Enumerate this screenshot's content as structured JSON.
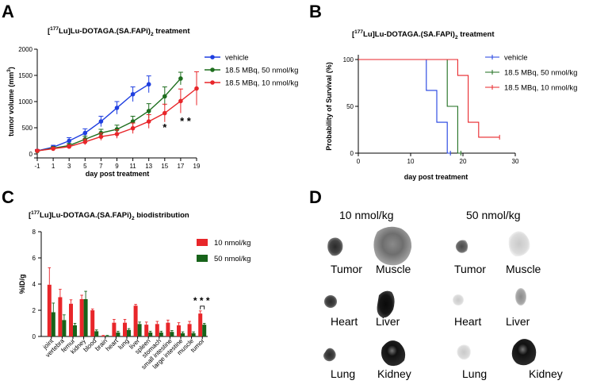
{
  "panels": {
    "A": {
      "letter": "A",
      "title_pre": "[",
      "title_sup": "177",
      "title_main": "Lu]Lu-DOTAGA.(SA.FAPi)",
      "title_sub": "2",
      "title_post": " treatment"
    },
    "B": {
      "letter": "B",
      "title_pre": "[",
      "title_sup": "177",
      "title_main": "Lu]Lu-DOTAGA.(SA.FAPi)",
      "title_sub": "2",
      "title_post": " treatment"
    },
    "C": {
      "letter": "C",
      "title_pre": "[",
      "title_sup": "177",
      "title_main": "Lu]Lu-DOTAGA.(SA.FAPi)",
      "title_sub": "2",
      "title_post": " biodistribution"
    },
    "D": {
      "letter": "D"
    }
  },
  "colors": {
    "blue": "#1f3fe0",
    "green": "#1e6e1e",
    "red": "#e8262a",
    "dark_green": "#17631a"
  },
  "chart_data": [
    {
      "id": "A",
      "type": "line",
      "xlabel": "day post treatment",
      "ylabel_main": "tumor volume (mm",
      "ylabel_sup": "3",
      "ylabel_end": ")",
      "xlim": [
        -1,
        19
      ],
      "ylim": [
        0,
        2000
      ],
      "xticks": [
        -1,
        1,
        3,
        5,
        7,
        9,
        11,
        13,
        15,
        17,
        19
      ],
      "yticks": [
        0,
        500,
        1000,
        1500,
        2000
      ],
      "series": [
        {
          "name": "vehicle",
          "color": "#1f3fe0",
          "x": [
            -1,
            1,
            3,
            5,
            7,
            9,
            11,
            13
          ],
          "y": [
            60,
            130,
            250,
            400,
            620,
            880,
            1140,
            1330
          ],
          "err": [
            25,
            35,
            60,
            80,
            100,
            120,
            140,
            160
          ]
        },
        {
          "name": "18.5 MBq, 50 nmol/kg",
          "color": "#1e6e1e",
          "x": [
            -1,
            1,
            3,
            5,
            7,
            9,
            11,
            13,
            15,
            17
          ],
          "y": [
            55,
            110,
            160,
            280,
            400,
            470,
            620,
            820,
            1100,
            1440
          ],
          "err": [
            20,
            30,
            40,
            60,
            70,
            80,
            100,
            140,
            180,
            120
          ]
        },
        {
          "name": "18.5 MBq, 10 nmol/kg",
          "color": "#e8262a",
          "x": [
            -1,
            1,
            3,
            5,
            7,
            9,
            11,
            13,
            15,
            17,
            19
          ],
          "y": [
            60,
            100,
            140,
            230,
            330,
            380,
            490,
            620,
            780,
            1010,
            1250
          ],
          "err": [
            20,
            25,
            35,
            55,
            70,
            80,
            100,
            130,
            170,
            230,
            320
          ]
        }
      ],
      "annotations": [
        {
          "text": "*",
          "x": 15,
          "y": 440
        },
        {
          "text": "* *",
          "x": 17.6,
          "y": 560
        }
      ]
    },
    {
      "id": "B",
      "type": "line",
      "subtype": "survival",
      "xlabel": "day post treatment",
      "ylabel": "Probability of Survival (%)",
      "xlim": [
        0,
        30
      ],
      "ylim": [
        0,
        100
      ],
      "xticks": [
        0,
        10,
        20,
        30
      ],
      "yticks": [
        0,
        50,
        100
      ],
      "series": [
        {
          "name": "vehicle",
          "color": "#1f3fe0",
          "steps": [
            [
              0,
              100
            ],
            [
              13,
              100
            ],
            [
              13,
              67
            ],
            [
              15,
              67
            ],
            [
              15,
              33
            ],
            [
              17,
              33
            ],
            [
              17,
              0
            ],
            [
              17.6,
              0
            ]
          ]
        },
        {
          "name": "18.5 MBq, 50 nmol/kg",
          "color": "#1e6e1e",
          "steps": [
            [
              0,
              100
            ],
            [
              17,
              100
            ],
            [
              17,
              50
            ],
            [
              19,
              50
            ],
            [
              19,
              0
            ],
            [
              19.6,
              0
            ]
          ]
        },
        {
          "name": "18.5 MBq, 10 nmol/kg",
          "color": "#e8262a",
          "steps": [
            [
              0,
              100
            ],
            [
              19,
              100
            ],
            [
              19,
              83
            ],
            [
              21,
              83
            ],
            [
              21,
              33
            ],
            [
              23,
              33
            ],
            [
              23,
              17
            ],
            [
              27,
              17
            ]
          ]
        }
      ]
    },
    {
      "id": "C",
      "type": "bar",
      "ylabel": "%ID/g",
      "ylim": [
        0,
        8
      ],
      "yticks": [
        0,
        2,
        4,
        6,
        8
      ],
      "categories": [
        "joint",
        "vertebra",
        "femur",
        "kidney",
        "blood",
        "brain",
        "heart",
        "lung",
        "liver",
        "spleen",
        "stomach",
        "small intestine",
        "large intestine",
        "muscle",
        "tumor"
      ],
      "series": [
        {
          "name": "10 nmol/kg",
          "color": "#e8262a",
          "values": [
            3.95,
            3.0,
            2.5,
            2.85,
            2.0,
            0.05,
            1.05,
            1.05,
            2.35,
            0.9,
            0.95,
            1.05,
            0.85,
            0.95,
            1.75
          ],
          "err": [
            1.3,
            0.6,
            0.3,
            0.3,
            0.1,
            0.03,
            0.25,
            0.25,
            0.1,
            0.2,
            0.2,
            0.2,
            0.2,
            0.2,
            0.2
          ]
        },
        {
          "name": "50 nmol/kg",
          "color": "#17631a",
          "values": [
            1.85,
            1.25,
            0.85,
            2.85,
            0.4,
            0.05,
            0.3,
            0.5,
            0.95,
            0.3,
            0.3,
            0.35,
            0.25,
            0.25,
            0.9
          ],
          "err": [
            0.7,
            0.4,
            0.15,
            0.6,
            0.1,
            0.03,
            0.1,
            0.1,
            0.15,
            0.1,
            0.1,
            0.1,
            0.1,
            0.1,
            0.1
          ]
        }
      ],
      "significance": {
        "text": "* * *",
        "category": "tumor"
      }
    }
  ],
  "panel_D": {
    "columns": [
      "10 nmol/kg",
      "50 nmol/kg"
    ],
    "labels": {
      "tumor_10": "Tumor",
      "muscle_10": "Muscle",
      "tumor_50": "Tumor",
      "muscle_50": "Muscle",
      "heart_10": "Heart",
      "liver_10": "Liver",
      "heart_50": "Heart",
      "liver_50": "Liver",
      "lung_10": "Lung",
      "kidney_10": "Kidney",
      "lung_50": "Lung",
      "kidney_50": "Kidney"
    }
  }
}
